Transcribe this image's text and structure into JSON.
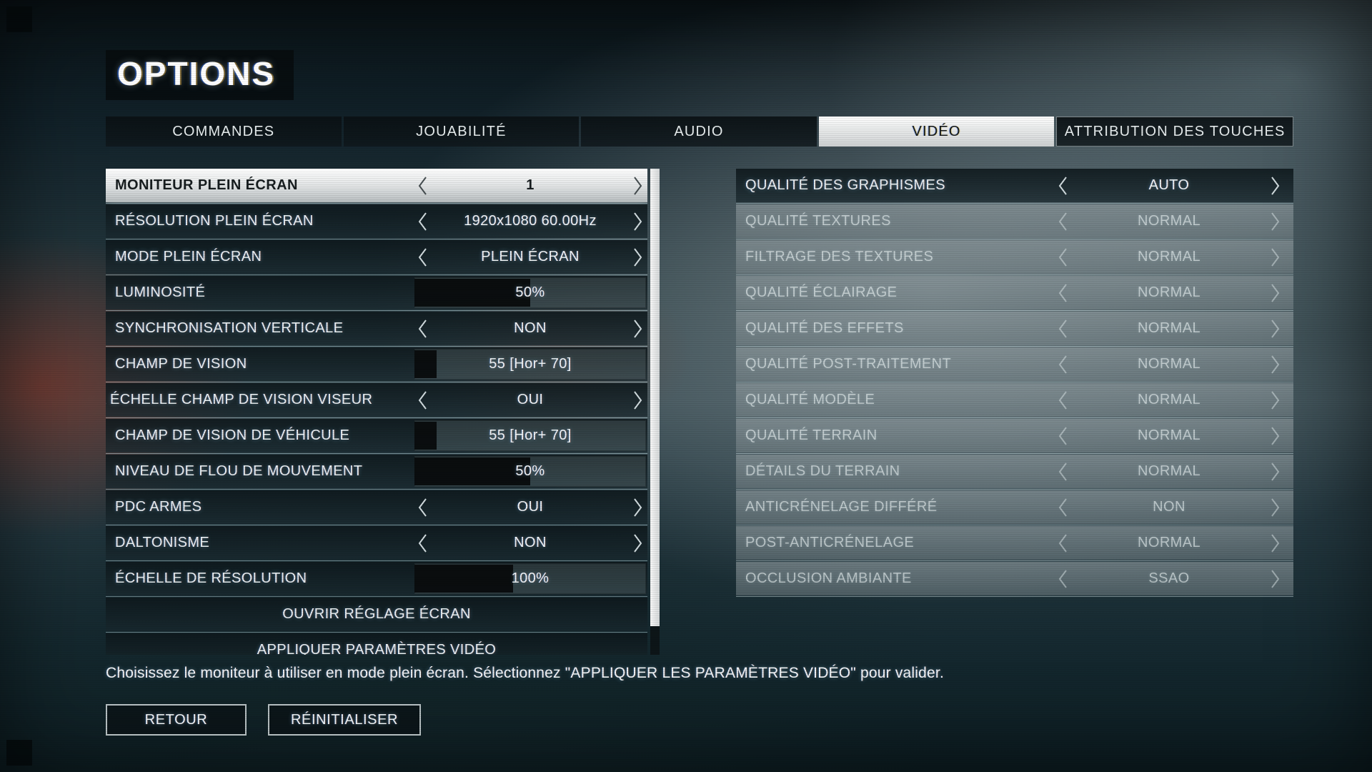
{
  "title": "OPTIONS",
  "tabs": [
    {
      "label": "COMMANDES",
      "active": false,
      "outlined": false
    },
    {
      "label": "JOUABILITÉ",
      "active": false,
      "outlined": false
    },
    {
      "label": "AUDIO",
      "active": false,
      "outlined": false
    },
    {
      "label": "VIDÉO",
      "active": true,
      "outlined": false
    },
    {
      "label": "ATTRIBUTION DES TOUCHES",
      "active": false,
      "outlined": true
    }
  ],
  "left_panel": {
    "rows": [
      {
        "label": "MONITEUR PLEIN ÉCRAN",
        "type": "stepper",
        "value": "1",
        "selected": true
      },
      {
        "label": "RÉSOLUTION PLEIN ÉCRAN",
        "type": "stepper",
        "value": "1920x1080 60.00Hz"
      },
      {
        "label": "MODE PLEIN ÉCRAN",
        "type": "stepper",
        "value": "PLEIN ÉCRAN"
      },
      {
        "label": "LUMINOSITÉ",
        "type": "slider",
        "value": "50%",
        "fill": 0.5
      },
      {
        "label": "SYNCHRONISATION VERTICALE",
        "type": "stepper",
        "value": "NON"
      },
      {
        "label": "CHAMP DE VISION",
        "type": "slider",
        "value": "55  [Hor+ 70]",
        "fill": 0.095
      },
      {
        "label": "ÉCHELLE CHAMP DE VISION VISEUR",
        "type": "stepper",
        "value": "OUI",
        "label_clipped_left": true,
        "label_fragment": "A"
      },
      {
        "label": "CHAMP DE VISION DE VÉHICULE",
        "type": "slider",
        "value": "55  [Hor+ 70]",
        "fill": 0.095
      },
      {
        "label": "NIVEAU DE FLOU DE MOUVEMENT",
        "type": "slider",
        "value": "50%",
        "fill": 0.5
      },
      {
        "label": "PDC ARMES",
        "type": "stepper",
        "value": "OUI"
      },
      {
        "label": "DALTONISME",
        "type": "stepper",
        "value": "NON"
      },
      {
        "label": "ÉCHELLE DE RÉSOLUTION",
        "type": "slider",
        "value": "100%",
        "fill": 0.425
      },
      {
        "label": "OUVRIR RÉGLAGE ÉCRAN",
        "type": "action"
      },
      {
        "label": "APPLIQUER PARAMÈTRES VIDÉO",
        "type": "action",
        "clipped": true
      }
    ]
  },
  "right_panel": {
    "rows": [
      {
        "label": "QUALITÉ DES GRAPHISMES",
        "type": "stepper",
        "value": "AUTO",
        "disabled": false
      },
      {
        "label": "QUALITÉ TEXTURES",
        "type": "stepper",
        "value": "NORMAL",
        "disabled": true
      },
      {
        "label": "FILTRAGE DES TEXTURES",
        "type": "stepper",
        "value": "NORMAL",
        "disabled": true
      },
      {
        "label": "QUALITÉ ÉCLAIRAGE",
        "type": "stepper",
        "value": "NORMAL",
        "disabled": true
      },
      {
        "label": "QUALITÉ DES EFFETS",
        "type": "stepper",
        "value": "NORMAL",
        "disabled": true
      },
      {
        "label": "QUALITÉ POST-TRAITEMENT",
        "type": "stepper",
        "value": "NORMAL",
        "disabled": true
      },
      {
        "label": "QUALITÉ MODÈLE",
        "type": "stepper",
        "value": "NORMAL",
        "disabled": true
      },
      {
        "label": "QUALITÉ TERRAIN",
        "type": "stepper",
        "value": "NORMAL",
        "disabled": true
      },
      {
        "label": "DÉTAILS DU TERRAIN",
        "type": "stepper",
        "value": "NORMAL",
        "disabled": true
      },
      {
        "label": "ANTICRÉNELAGE DIFFÉRÉ",
        "type": "stepper",
        "value": "NON",
        "disabled": true
      },
      {
        "label": "POST-ANTICRÉNELAGE",
        "type": "stepper",
        "value": "NORMAL",
        "disabled": true
      },
      {
        "label": "OCCLUSION AMBIANTE",
        "type": "stepper",
        "value": "SSAO",
        "disabled": true
      }
    ]
  },
  "footer": {
    "description": "Choisissez le moniteur à utiliser en mode plein écran. Sélectionnez \"APPLIQUER LES PARAMÈTRES VIDÉO\" pour valider.",
    "buttons": [
      {
        "label": "RETOUR"
      },
      {
        "label": "RÉINITIALISER"
      }
    ]
  },
  "colors": {
    "selected_row": "#e9ecec",
    "active_tab": "#f0f2f2",
    "row_dark_teal": "#16262d",
    "disabled_gray": "#97a3a7",
    "slider_fill": "#07090a",
    "text_light": "#eef4f5"
  }
}
